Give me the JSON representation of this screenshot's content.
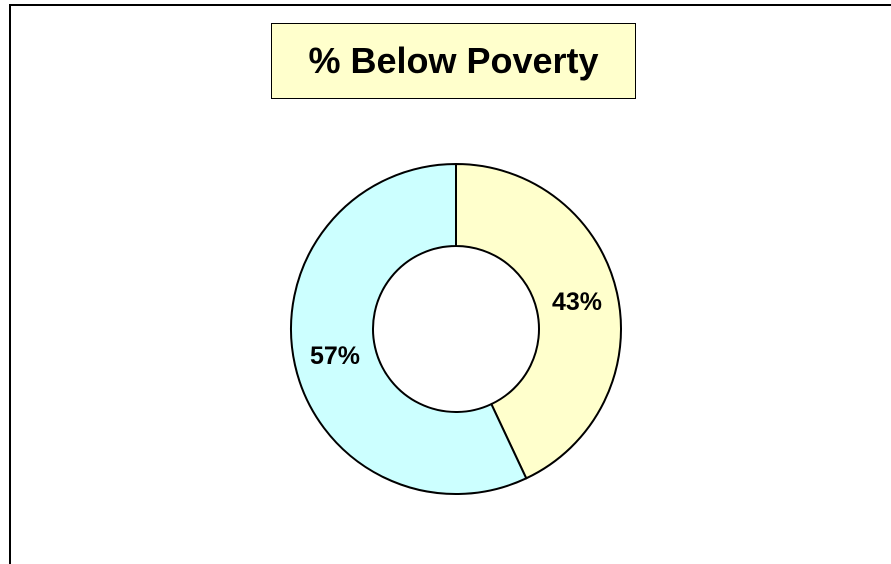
{
  "chart_data": {
    "type": "pie",
    "variant": "donut",
    "title": "% Below Poverty",
    "slices": [
      {
        "value": 43,
        "label": "43%",
        "color": "#ffffcc"
      },
      {
        "value": 57,
        "label": "57%",
        "color": "#ccffff"
      }
    ],
    "start_angle_deg": 0,
    "direction": "clockwise",
    "title_background": "#ffffcc",
    "legend": "none"
  }
}
